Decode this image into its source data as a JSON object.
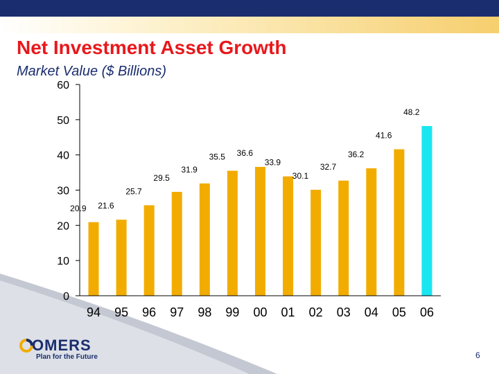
{
  "header": {
    "title": "Net Investment Asset Growth",
    "subtitle": "Market Value ($ Billions)"
  },
  "chart_data": {
    "type": "bar",
    "title": "Net Investment Asset Growth",
    "ylabel": "Market Value ($ Billions)",
    "xlabel": "",
    "ylim": [
      0,
      60
    ],
    "yticks": [
      0,
      10,
      20,
      30,
      40,
      50,
      60
    ],
    "grid": false,
    "categories": [
      "94",
      "95",
      "96",
      "97",
      "98",
      "99",
      "00",
      "01",
      "02",
      "03",
      "04",
      "05",
      "06"
    ],
    "values": [
      20.9,
      21.6,
      25.7,
      29.5,
      31.9,
      35.5,
      36.6,
      33.9,
      30.1,
      32.7,
      36.2,
      41.6,
      48.2
    ],
    "data_labels": [
      "20.9",
      "21.6",
      "25.7",
      "29.5",
      "31.9",
      "35.5",
      "36.6",
      "33.9",
      "30.1",
      "32.7",
      "36.2",
      "41.6",
      "48.2"
    ],
    "colors": {
      "bar": "#f2ac00",
      "highlight": "#19e6f0",
      "axis": "#000000"
    },
    "highlight_category": "06"
  },
  "footer": {
    "logo_name": "OMERS",
    "logo_tagline": "Plan for the Future",
    "page_number": "6"
  }
}
